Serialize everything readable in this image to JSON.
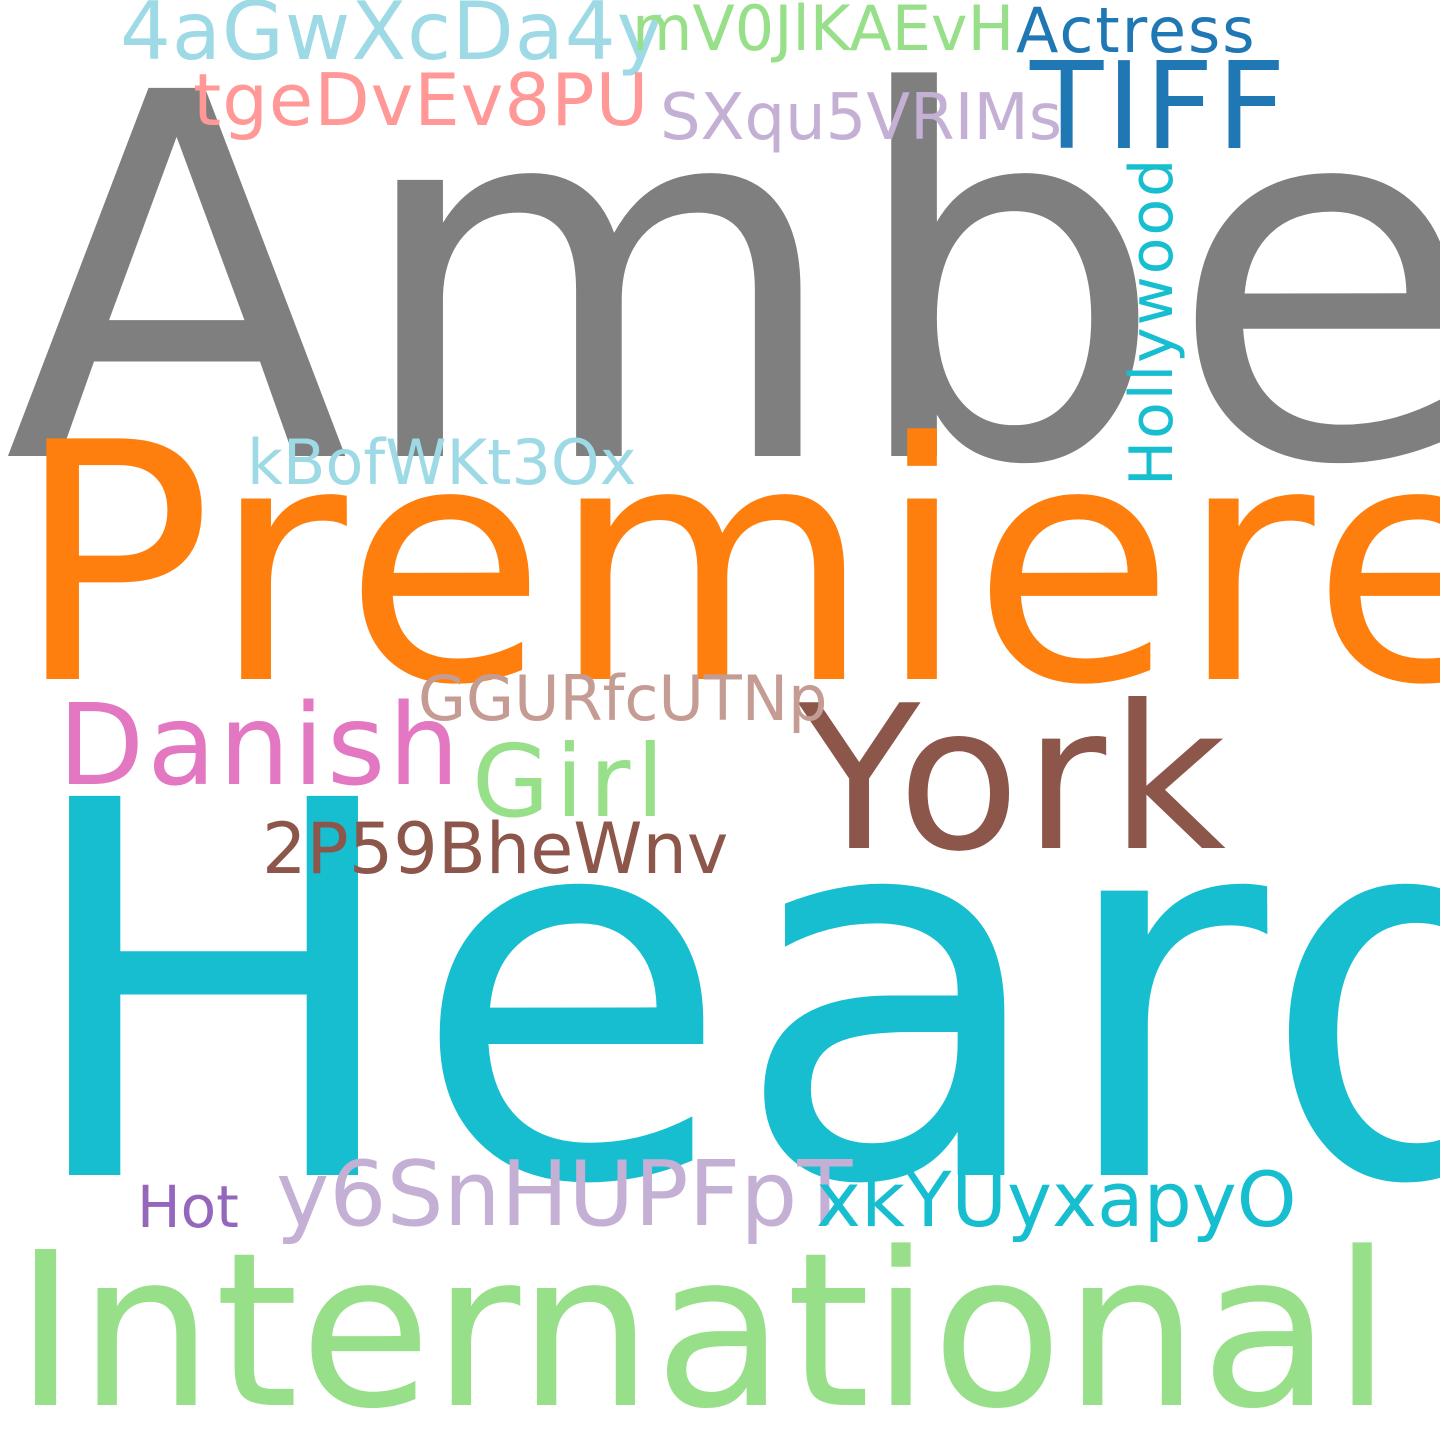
{
  "word_cloud": {
    "background": "#ffffff",
    "words": [
      {
        "text": "Amber",
        "color": "#7f7f7f"
      },
      {
        "text": "Premiere",
        "color": "#ff7f0e"
      },
      {
        "text": "Heard",
        "color": "#17becf"
      },
      {
        "text": "International",
        "color": "#98df8a"
      },
      {
        "text": "York",
        "color": "#8c564b"
      },
      {
        "text": "TIFF",
        "color": "#1f77b4"
      },
      {
        "text": "Danish",
        "color": "#e377c2"
      },
      {
        "text": "Girl",
        "color": "#98df8a"
      },
      {
        "text": "4aGwXcDa4y",
        "color": "#9edae5"
      },
      {
        "text": "mV0JlKAEvH",
        "color": "#98df8a"
      },
      {
        "text": "Actress",
        "color": "#1f77b4"
      },
      {
        "text": "tgeDvEv8PU",
        "color": "#ff9896"
      },
      {
        "text": "SXqu5VRIMs",
        "color": "#c5b0d5"
      },
      {
        "text": "Hollywood",
        "color": "#17becf",
        "orientation": "vertical"
      },
      {
        "text": "kBofWKt3Ox",
        "color": "#9edae5"
      },
      {
        "text": "GGURfcUTNp",
        "color": "#c49c94"
      },
      {
        "text": "2P59BheWnv",
        "color": "#8c564b"
      },
      {
        "text": "Hot",
        "color": "#9467bd"
      },
      {
        "text": "y6SnHUPFpT",
        "color": "#c5b0d5"
      },
      {
        "text": "xkYUyxapyO",
        "color": "#17becf"
      }
    ]
  }
}
